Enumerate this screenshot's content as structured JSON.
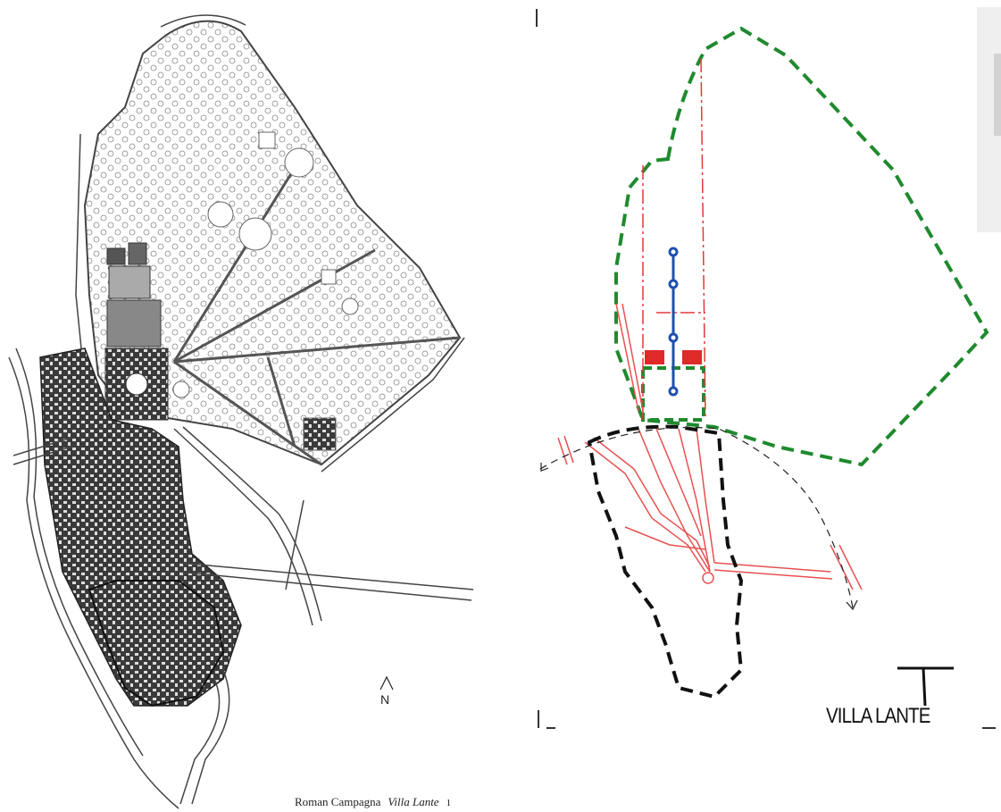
{
  "left_map": {
    "north_label": "N",
    "caption": {
      "region": "Roman Campagna",
      "title": "Villa Lante",
      "page": "1"
    }
  },
  "right_sketch": {
    "title": "VILLA LANTE",
    "colors": {
      "park_boundary": "#1f8a2e",
      "axes": "#e03a3a",
      "water_axis": "#1f4fb0",
      "town_boundary": "#111111",
      "parterres": "#e02a2a"
    }
  }
}
